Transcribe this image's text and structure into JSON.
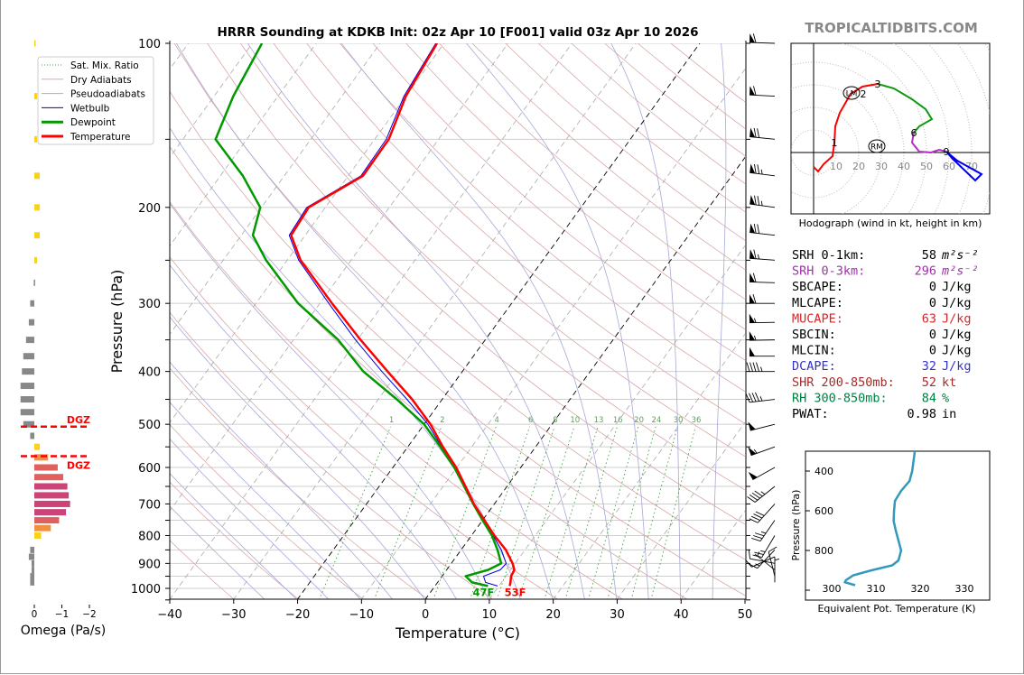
{
  "site": "TROPICALTIDBITS.COM",
  "chart_data": [
    {
      "id": "skewt",
      "type": "line",
      "title": "HRRR Sounding at KDKB Init: 02z Apr 10 [F001] valid 03z Apr 10 2026",
      "xlabel": "Temperature (°C)",
      "ylabel": "Pressure (hPa)",
      "xlim": [
        -40,
        50
      ],
      "ylim": [
        1050,
        100
      ],
      "yscale": "log",
      "skewed": true,
      "grid": true,
      "xticks": [
        -40,
        -30,
        -20,
        -10,
        0,
        10,
        20,
        30,
        40,
        50
      ],
      "xtick_labels": [
        "−40",
        "−30",
        "−20",
        "−10",
        "0",
        "10",
        "20",
        "30",
        "40",
        "50"
      ],
      "yticks": [
        100,
        200,
        300,
        400,
        500,
        600,
        700,
        800,
        900,
        1000
      ],
      "ytick_labels": [
        "100",
        "200",
        "300",
        "400",
        "500",
        "600",
        "700",
        "800",
        "900",
        "1000"
      ],
      "legend": {
        "position": "top-left",
        "entries": [
          {
            "label": "Sat. Mix. Ratio",
            "color": "#40a040",
            "style": "dotted"
          },
          {
            "label": "Dry Adiabats",
            "color": "#d9a8a8",
            "style": "solid"
          },
          {
            "label": "Pseudoadiabats",
            "color": "#a8a8d8",
            "style": "solid"
          },
          {
            "label": "Wetbulb",
            "color": "#0000dd",
            "style": "solid"
          },
          {
            "label": "Dewpoint",
            "color": "#009900",
            "style": "thick"
          },
          {
            "label": "Temperature",
            "color": "#ff0000",
            "style": "thick"
          }
        ]
      },
      "pressure": [
        100,
        125,
        150,
        175,
        200,
        225,
        250,
        300,
        350,
        400,
        450,
        500,
        550,
        600,
        650,
        700,
        750,
        800,
        850,
        900,
        925,
        950,
        975,
        990
      ],
      "series": [
        {
          "name": "Temperature",
          "color": "#ff0000",
          "values": [
            -61.1,
            -60.0,
            -57.8,
            -57.7,
            -62.6,
            -62.2,
            -57.9,
            -48.1,
            -39.5,
            -31.7,
            -24.7,
            -19.0,
            -14.5,
            -10.1,
            -6.5,
            -3.2,
            0.3,
            3.6,
            7.0,
            9.6,
            10.6,
            10.8,
            11.4,
            11.7
          ]
        },
        {
          "name": "Dewpoint",
          "color": "#009900",
          "values": [
            -88.5,
            -87.0,
            -84.9,
            -76.5,
            -70.2,
            -68.2,
            -63.3,
            -53.4,
            -43.0,
            -35.5,
            -27.1,
            -20.0,
            -14.9,
            -10.4,
            -6.7,
            -3.3,
            0.0,
            3.2,
            5.7,
            7.8,
            6.5,
            3.7,
            5.4,
            8.3
          ]
        },
        {
          "name": "Wetbulb",
          "color": "#0000dd",
          "values": [
            -61.3,
            -60.3,
            -58.2,
            -58.0,
            -62.9,
            -62.5,
            -58.2,
            -48.6,
            -40.3,
            -32.6,
            -25.5,
            -19.4,
            -14.7,
            -10.2,
            -6.6,
            -3.3,
            0.1,
            3.4,
            6.3,
            8.6,
            8.4,
            6.5,
            7.5,
            9.8
          ]
        }
      ],
      "mixing_ratio_lines": [
        1,
        2,
        4,
        6,
        8,
        10,
        13,
        16,
        20,
        24,
        30,
        36
      ],
      "mixing_ratio_labels": [
        "1",
        "2",
        "4",
        "6",
        "8",
        "10",
        "13",
        "16",
        "20",
        "24",
        "30",
        "36"
      ],
      "highlight_isotherms": [
        0,
        -20
      ],
      "surface_labels": {
        "dewpoint": "47F",
        "temperature": "53F"
      },
      "winds_kt": {
        "pressure": [
          100,
          125,
          150,
          175,
          200,
          225,
          250,
          275,
          300,
          325,
          350,
          375,
          400,
          450,
          500,
          550,
          600,
          650,
          700,
          750,
          800,
          850,
          875,
          900,
          925,
          950,
          975
        ],
        "u": [
          60,
          62,
          68,
          72,
          74,
          70,
          66,
          62,
          59,
          56,
          54,
          50,
          47,
          43,
          47,
          50,
          43,
          35,
          27,
          20,
          13,
          9.5,
          9,
          8,
          5,
          2,
          0
        ],
        "v": [
          -2,
          -3,
          -7,
          -9,
          -10,
          -8,
          -5,
          -2,
          0,
          1,
          1,
          0,
          0,
          5,
          12,
          18,
          24,
          28,
          30,
          29,
          22,
          10,
          4,
          -1.5,
          -4,
          -8,
          -6
        ]
      }
    },
    {
      "id": "omega",
      "type": "bar",
      "orientation": "horizontal",
      "xlabel": "Omega (Pa/s)",
      "xticks": [
        0,
        -1,
        -2
      ],
      "xtick_labels": [
        "0",
        "−1",
        "−2"
      ],
      "xlim": [
        0.5,
        -2
      ],
      "pressure": [
        100,
        125,
        150,
        175,
        200,
        225,
        250,
        275,
        300,
        325,
        350,
        375,
        400,
        425,
        450,
        475,
        500,
        525,
        550,
        575,
        600,
        625,
        650,
        675,
        700,
        725,
        750,
        775,
        800,
        850,
        875,
        900,
        925,
        950,
        975
      ],
      "values": [
        -0.05,
        -0.1,
        -0.1,
        -0.2,
        -0.2,
        -0.2,
        -0.1,
        0.02,
        0.15,
        0.2,
        0.3,
        0.4,
        0.45,
        0.5,
        0.5,
        0.5,
        0.4,
        0.15,
        -0.2,
        -0.5,
        -0.85,
        -1.05,
        -1.2,
        -1.25,
        -1.3,
        -1.15,
        -0.9,
        -0.6,
        -0.25,
        0.15,
        0.2,
        0.1,
        0.1,
        0.15,
        0.15
      ],
      "dgz_bounds_hpa": [
        505,
        572
      ],
      "annotations": [
        "DGZ",
        "DGZ"
      ],
      "colors": {
        "positive": "#888888",
        "weak": "#f7d21e",
        "moderate": "#f09040",
        "strong": "#e0605e",
        "max": "#cc4477",
        "dgz": "#ff0000"
      }
    },
    {
      "id": "hodograph",
      "type": "line",
      "xlabel": "Hodograph (wind in kt, height in km)",
      "ring_labels": [
        "10",
        "20",
        "30",
        "40",
        "50",
        "60",
        "70"
      ],
      "segments": [
        {
          "color": "#ff0000",
          "points": [
            [
              0,
              -6.4
            ],
            [
              2,
              -8.4
            ],
            [
              4.4,
              -5.2
            ],
            [
              8.4,
              -1.6
            ],
            [
              9.2,
              4.4
            ],
            [
              9.6,
              11.6
            ],
            [
              11.6,
              17.6
            ],
            [
              16.4,
              26
            ],
            [
              21.6,
              29.2
            ],
            [
              28.4,
              30.4
            ]
          ]
        },
        {
          "color": "#119911",
          "points": [
            [
              28.4,
              30.4
            ],
            [
              35.6,
              28.4
            ],
            [
              43.6,
              23.6
            ],
            [
              49.6,
              19.2
            ],
            [
              52.4,
              14.8
            ],
            [
              46.8,
              11.6
            ],
            [
              44.4,
              8.8
            ]
          ]
        },
        {
          "color": "#b030c0",
          "points": [
            [
              44.4,
              8.8
            ],
            [
              43.6,
              4.4
            ],
            [
              46.8,
              0.4
            ],
            [
              52,
              0
            ],
            [
              55.6,
              1.2
            ],
            [
              58.8,
              0.4
            ]
          ]
        },
        {
          "color": "#0000ee",
          "points": [
            [
              58.8,
              0.4
            ],
            [
              63.6,
              -3.6
            ],
            [
              74.4,
              -9.6
            ],
            [
              71.6,
              -12.4
            ],
            [
              61.6,
              -2.8
            ],
            [
              58.8,
              0.4
            ]
          ]
        }
      ],
      "height_labels": [
        {
          "label": "1",
          "u": 9.2,
          "v": 4.4
        },
        {
          "label": "2",
          "u": 16.4,
          "v": 26
        },
        {
          "label": "3",
          "u": 28.4,
          "v": 30.4
        },
        {
          "label": "6",
          "u": 44.4,
          "v": 8.8
        },
        {
          "label": "9",
          "u": 58.8,
          "v": 0.4
        }
      ],
      "storm_motion": [
        {
          "label": "LM",
          "u": 16.8,
          "v": 26.4
        },
        {
          "label": "RM",
          "u": 28,
          "v": 2.8
        }
      ]
    },
    {
      "id": "theta_e",
      "type": "line",
      "xlabel": "Equivalent Pot. Temperature (K)",
      "ylabel": "Pressure (hPa)",
      "xlim": [
        294.5,
        336
      ],
      "ylim": [
        1050,
        300
      ],
      "xticks": [
        300,
        310,
        320,
        330
      ],
      "yticks": [
        400,
        600,
        800
      ],
      "color": "#3399bb",
      "pressure": [
        300,
        400,
        450,
        500,
        550,
        600,
        650,
        700,
        750,
        800,
        850,
        875,
        900,
        925,
        950,
        960,
        975
      ],
      "values": [
        318.8,
        318.2,
        317.6,
        315.7,
        314.3,
        314.1,
        314.0,
        314.5,
        315.1,
        315.7,
        315.1,
        313.7,
        309.0,
        304.9,
        303.2,
        303.0,
        305.3
      ]
    }
  ],
  "stats": [
    {
      "label": "SRH 0-1km:",
      "value": "58",
      "unit": "m²s⁻²",
      "color": "#000000"
    },
    {
      "label": "SRH 0-3km:",
      "value": "296",
      "unit": "m²s⁻²",
      "color": "#a030a8"
    },
    {
      "label": "SBCAPE:",
      "value": "0",
      "unit": "J/kg",
      "color": "#000000"
    },
    {
      "label": "MLCAPE:",
      "value": "0",
      "unit": "J/kg",
      "color": "#000000"
    },
    {
      "label": "MUCAPE:",
      "value": "63",
      "unit": "J/kg",
      "color": "#d62728"
    },
    {
      "label": "SBCIN:",
      "value": "0",
      "unit": "J/kg",
      "color": "#000000"
    },
    {
      "label": "MLCIN:",
      "value": "0",
      "unit": "J/kg",
      "color": "#000000"
    },
    {
      "label": "DCAPE:",
      "value": "32",
      "unit": "J/kg",
      "color": "#3333cc"
    },
    {
      "label": "SHR 200-850mb:",
      "value": "52",
      "unit": "kt",
      "color": "#a52a2a"
    },
    {
      "label": "RH 300-850mb:",
      "value": "84",
      "unit": "%",
      "color": "#008040"
    },
    {
      "label": "PWAT:",
      "value": "0.98",
      "unit": "in",
      "color": "#000000"
    }
  ]
}
